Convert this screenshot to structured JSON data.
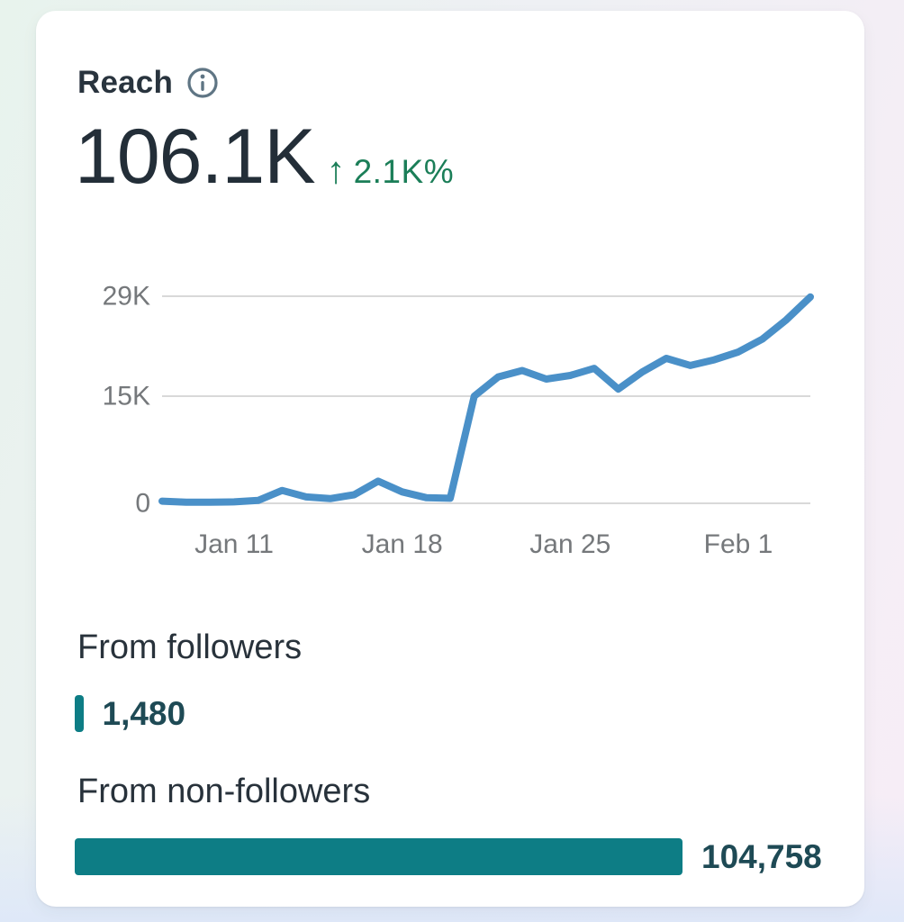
{
  "card": {
    "title": "Reach",
    "metric": {
      "value": "106.1K",
      "change_arrow": "↑",
      "change_value": "2.1K%",
      "change_direction": "up",
      "change_color": "#1b7e58"
    }
  },
  "chart_data": {
    "type": "line",
    "x": [
      "Jan 8",
      "Jan 9",
      "Jan 10",
      "Jan 11",
      "Jan 12",
      "Jan 13",
      "Jan 14",
      "Jan 15",
      "Jan 16",
      "Jan 17",
      "Jan 18",
      "Jan 19",
      "Jan 20",
      "Jan 21",
      "Jan 22",
      "Jan 23",
      "Jan 24",
      "Jan 25",
      "Jan 26",
      "Jan 27",
      "Jan 28",
      "Jan 29",
      "Jan 30",
      "Jan 31",
      "Feb 1",
      "Feb 2",
      "Feb 3",
      "Feb 4"
    ],
    "values": [
      300,
      150,
      150,
      200,
      400,
      1800,
      900,
      650,
      1200,
      3100,
      1600,
      800,
      700,
      15000,
      17700,
      18600,
      17400,
      17900,
      18900,
      16000,
      18400,
      20300,
      19300,
      20100,
      21200,
      23000,
      25700,
      28900
    ],
    "x_tick_labels": [
      "Jan 11",
      "Jan 18",
      "Jan 25",
      "Feb 1"
    ],
    "x_tick_positions": [
      3,
      10,
      17,
      24
    ],
    "y_ticks": [
      {
        "label": "29K",
        "value": 29000
      },
      {
        "label": "15K",
        "value": 15000
      },
      {
        "label": "0",
        "value": 0
      }
    ],
    "ylim": [
      0,
      29000
    ],
    "line_color": "#4a90c8",
    "grid": true,
    "legend": "none"
  },
  "breakdown": {
    "bar_color": "#0d7d85",
    "value_color": "#1e4a55",
    "items": [
      {
        "label": "From followers",
        "value": "1,480",
        "raw": 1480
      },
      {
        "label": "From non-followers",
        "value": "104,758",
        "raw": 104758
      }
    ]
  }
}
